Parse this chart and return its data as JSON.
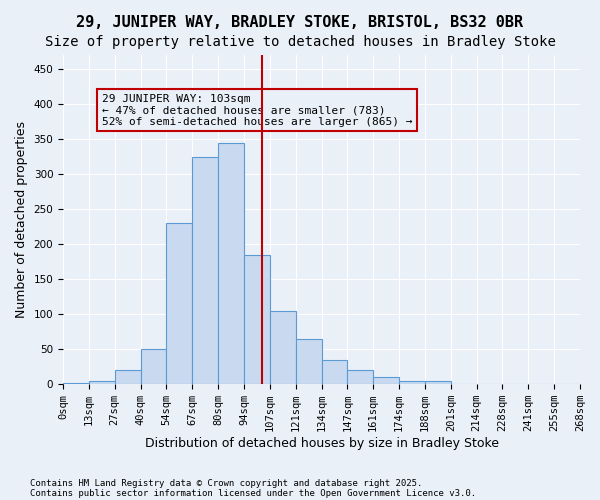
{
  "title": "29, JUNIPER WAY, BRADLEY STOKE, BRISTOL, BS32 0BR",
  "subtitle": "Size of property relative to detached houses in Bradley Stoke",
  "xlabel": "Distribution of detached houses by size in Bradley Stoke",
  "ylabel": "Number of detached properties",
  "bins": [
    "0sqm",
    "13sqm",
    "27sqm",
    "40sqm",
    "54sqm",
    "67sqm",
    "80sqm",
    "94sqm",
    "107sqm",
    "121sqm",
    "134sqm",
    "147sqm",
    "161sqm",
    "174sqm",
    "188sqm",
    "201sqm",
    "214sqm",
    "228sqm",
    "241sqm",
    "255sqm",
    "268sqm"
  ],
  "bar_values": [
    2,
    5,
    20,
    50,
    230,
    325,
    345,
    185,
    105,
    65,
    35,
    20,
    10,
    5,
    5,
    0,
    0,
    0,
    0,
    0
  ],
  "bar_color": "#c8d9f0",
  "bar_edge_color": "#5b9bd5",
  "vline_x_index": 7.5,
  "vline_color": "#c00000",
  "annotation_text": "29 JUNIPER WAY: 103sqm\n← 47% of detached houses are smaller (783)\n52% of semi-detached houses are larger (865) →",
  "annotation_box_color": "#c00000",
  "ylim": [
    0,
    470
  ],
  "yticks": [
    0,
    50,
    100,
    150,
    200,
    250,
    300,
    350,
    400,
    450
  ],
  "bg_color": "#eaf0f8",
  "footnote1": "Contains HM Land Registry data © Crown copyright and database right 2025.",
  "footnote2": "Contains public sector information licensed under the Open Government Licence v3.0.",
  "title_fontsize": 11,
  "subtitle_fontsize": 10,
  "label_fontsize": 9,
  "tick_fontsize": 7.5,
  "annotation_fontsize": 8
}
